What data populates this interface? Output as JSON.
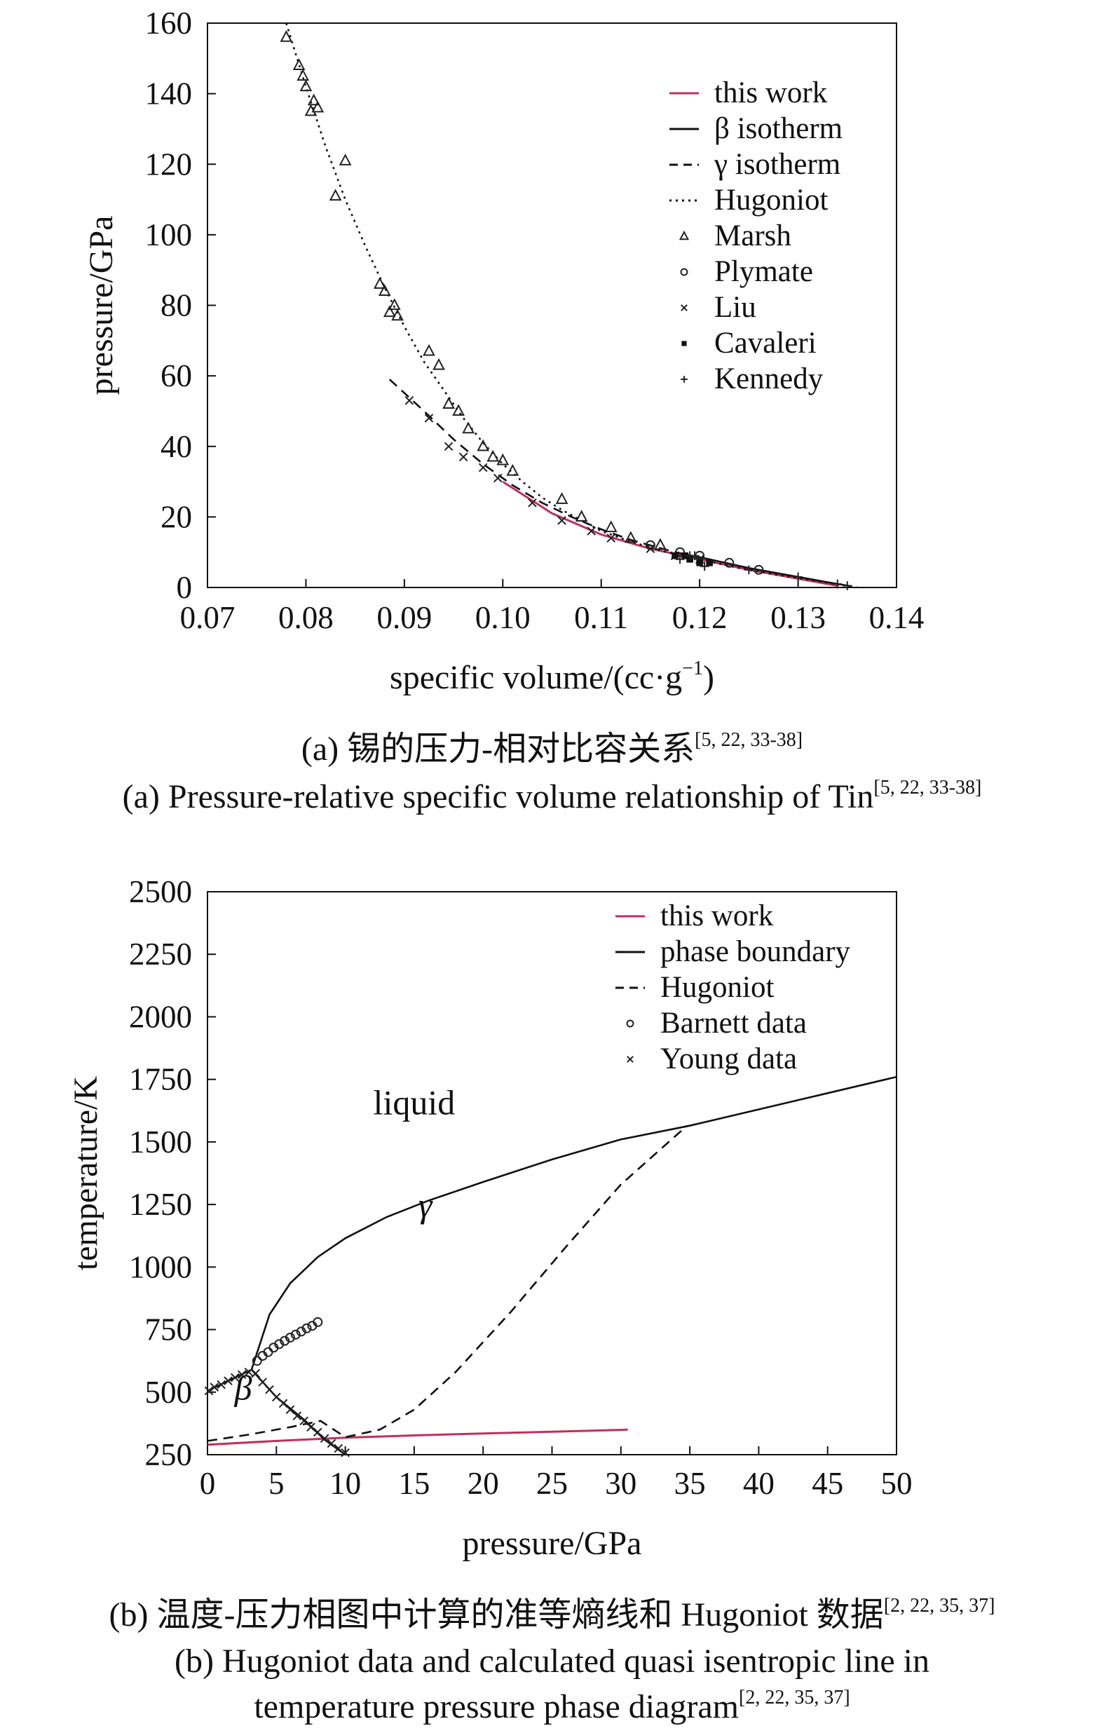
{
  "chart_data": [
    {
      "type": "scatter",
      "xlabel": "specific volume/(cc·g",
      "xlabel_sup": "−1",
      "xlabel_tail": ")",
      "ylabel": "pressure/GPa",
      "xlim": [
        0.07,
        0.14
      ],
      "ylim": [
        0,
        160
      ],
      "xticks": [
        "0.07",
        "0.08",
        "0.09",
        "0.10",
        "0.11",
        "0.12",
        "0.13",
        "0.14"
      ],
      "yticks": [
        "0",
        "20",
        "40",
        "60",
        "80",
        "100",
        "120",
        "140",
        "160"
      ],
      "legend_position": "top-right",
      "series": [
        {
          "name": "this work",
          "style": "solid",
          "color": "#c0305a",
          "x": [
            0.1,
            0.105,
            0.11,
            0.115,
            0.12,
            0.125,
            0.13,
            0.134
          ],
          "y": [
            30,
            21,
            15,
            11,
            8,
            5,
            2.5,
            0.5
          ]
        },
        {
          "name": "β isotherm",
          "style": "solid",
          "color": "#111111",
          "x": [
            0.1175,
            0.121,
            0.125,
            0.129,
            0.133,
            0.1355
          ],
          "y": [
            10,
            8,
            5.5,
            3.5,
            1.5,
            0.3
          ]
        },
        {
          "name": "γ isotherm",
          "style": "dashed",
          "color": "#111111",
          "x": [
            0.0885,
            0.092,
            0.095,
            0.098,
            0.101,
            0.104,
            0.107,
            0.11,
            0.113,
            0.1175
          ],
          "y": [
            59,
            50,
            42,
            35,
            29,
            24,
            20,
            16.5,
            13.5,
            10
          ]
        },
        {
          "name": "Hugoniot",
          "style": "dotted",
          "color": "#111111",
          "x": [
            0.078,
            0.08,
            0.082,
            0.084,
            0.086,
            0.088,
            0.09,
            0.092,
            0.094,
            0.096,
            0.098,
            0.1,
            0.102,
            0.104,
            0.106,
            0.108,
            0.11,
            0.113,
            0.116,
            0.12,
            0.124,
            0.128,
            0.132,
            0.136
          ],
          "y": [
            160,
            142,
            125,
            110,
            97,
            85,
            74,
            64,
            56,
            48,
            41,
            35,
            30,
            25.5,
            22,
            19,
            16,
            13,
            10.5,
            8,
            5.5,
            3.5,
            1.8,
            0
          ]
        },
        {
          "name": "Marsh",
          "marker": "triangle",
          "x": [
            0.078,
            0.0793,
            0.0797,
            0.08,
            0.0805,
            0.0808,
            0.0812,
            0.083,
            0.084,
            0.0875,
            0.088,
            0.0885,
            0.089,
            0.0893,
            0.0925,
            0.0935,
            0.0945,
            0.0955,
            0.0965,
            0.098,
            0.099,
            0.1,
            0.101,
            0.106,
            0.108,
            0.111,
            0.113,
            0.116
          ],
          "y": [
            156,
            148,
            145,
            142,
            135,
            138,
            136,
            111,
            121,
            86,
            84,
            78,
            80,
            77,
            67,
            63,
            52,
            50,
            45,
            40,
            37,
            36,
            33,
            25,
            20,
            17,
            14,
            12
          ]
        },
        {
          "name": "Plymate",
          "marker": "circle",
          "x": [
            0.115,
            0.118,
            0.12,
            0.123,
            0.126
          ],
          "y": [
            12,
            10,
            9,
            7,
            5
          ]
        },
        {
          "name": "Liu",
          "marker": "cross",
          "x": [
            0.0905,
            0.0925,
            0.0945,
            0.096,
            0.098,
            0.0995,
            0.103,
            0.106,
            0.109,
            0.111,
            0.115,
            0.1175,
            0.12
          ],
          "y": [
            53,
            48,
            40,
            37,
            34,
            31,
            24,
            19,
            16,
            14,
            11,
            9,
            8
          ]
        },
        {
          "name": "Cavaleri",
          "marker": "square",
          "x": [
            0.1175,
            0.1185,
            0.119,
            0.12,
            0.121
          ],
          "y": [
            9,
            9,
            8,
            7,
            7
          ]
        },
        {
          "name": "Kennedy",
          "marker": "plus",
          "x": [
            0.118,
            0.119,
            0.1195,
            0.1205,
            0.125,
            0.13,
            0.134,
            0.135
          ],
          "y": [
            8,
            9,
            9,
            6,
            5,
            3,
            1,
            0.5
          ]
        }
      ]
    },
    {
      "type": "line",
      "xlabel": "pressure/GPa",
      "ylabel": "temperature/K",
      "xlim": [
        0,
        50
      ],
      "ylim": [
        250,
        2500
      ],
      "xticks": [
        "0",
        "5",
        "10",
        "15",
        "20",
        "25",
        "30",
        "35",
        "40",
        "45",
        "50"
      ],
      "yticks": [
        "250",
        "500",
        "750",
        "1000",
        "1250",
        "1500",
        "1750",
        "2000",
        "2250",
        "2500"
      ],
      "legend_position": "top-right",
      "annotations": [
        {
          "text": "liquid",
          "x": 15,
          "y": 1610,
          "italic": false
        },
        {
          "text": "γ",
          "x": 15.8,
          "y": 1200,
          "italic": true
        },
        {
          "text": "β",
          "x": 2.6,
          "y": 470,
          "italic": true
        }
      ],
      "series": [
        {
          "name": "this work",
          "style": "solid",
          "color": "#c0305a",
          "x": [
            0,
            5,
            10,
            15,
            20,
            25,
            30.5
          ],
          "y": [
            290,
            305,
            318,
            327,
            335,
            342,
            350
          ]
        },
        {
          "name": "phase boundary",
          "style": "solid",
          "color": "#111111",
          "x": [
            0,
            3.2,
            4.5,
            6,
            8,
            10,
            13,
            16,
            20,
            25,
            30,
            35,
            40,
            45,
            50
          ],
          "y": [
            505,
            590,
            810,
            935,
            1040,
            1115,
            1200,
            1265,
            1340,
            1430,
            1510,
            1565,
            1630,
            1695,
            1760
          ]
        },
        {
          "name": "phase boundary β–γ",
          "style": "solid",
          "color": "#111111",
          "x": [
            3.2,
            5,
            7,
            8.5,
            10
          ],
          "y": [
            590,
            480,
            390,
            310,
            250
          ]
        },
        {
          "name": "Hugoniot",
          "style": "dashed",
          "color": "#111111",
          "x": [
            0,
            3,
            6,
            8.2,
            10,
            12.5,
            15,
            18,
            22,
            26,
            30,
            34.8
          ],
          "y": [
            305,
            330,
            360,
            385,
            320,
            350,
            430,
            580,
            820,
            1080,
            1330,
            1565
          ]
        },
        {
          "name": "Barnett data",
          "marker": "circle",
          "x": [
            3.6,
            4.0,
            4.4,
            4.8,
            5.2,
            5.6,
            6.0,
            6.4,
            6.8,
            7.2,
            7.6,
            8.0
          ],
          "y": [
            625,
            645,
            660,
            678,
            692,
            705,
            718,
            730,
            742,
            755,
            765,
            780
          ]
        },
        {
          "name": "Young data",
          "marker": "cross",
          "x": [
            0.1,
            0.5,
            1.0,
            1.5,
            2.0,
            2.5,
            3.0,
            3.5,
            4.0,
            4.5,
            5.0,
            5.5,
            6.0,
            6.5,
            7.0,
            7.5,
            8.0,
            8.5,
            9.0,
            9.5,
            10.0
          ],
          "y": [
            505,
            520,
            530,
            545,
            558,
            570,
            580,
            575,
            540,
            510,
            480,
            455,
            430,
            405,
            385,
            360,
            340,
            315,
            295,
            275,
            258
          ]
        }
      ]
    }
  ],
  "captions": {
    "a_cn": "(a) 锡的压力-相对比容关系",
    "a_cn_ref": "[5, 22, 33-38]",
    "a_en": "(a) Pressure-relative specific volume relationship of Tin",
    "a_en_ref": "[5, 22, 33-38]",
    "b_cn": "(b) 温度-压力相图中计算的准等熵线和 Hugoniot 数据",
    "b_cn_ref": "[2, 22, 35, 37]",
    "b_en1": "(b) Hugoniot data and calculated quasi isentropic line in",
    "b_en2": "temperature pressure phase diagram",
    "b_en_ref": "[2, 22, 35, 37]"
  }
}
